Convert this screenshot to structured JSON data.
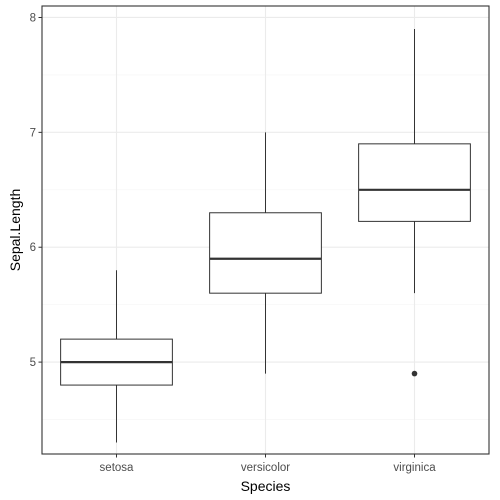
{
  "chart_data": {
    "type": "boxplot",
    "title": "",
    "xlabel": "Species",
    "ylabel": "Sepal.Length",
    "ylim": [
      4.2,
      8.1
    ],
    "y_ticks": [
      5,
      6,
      7,
      8
    ],
    "y_tick_labels": [
      "5",
      "6",
      "7",
      "8"
    ],
    "y_minor_ticks": [
      4.5,
      5.5,
      6.5,
      7.5
    ],
    "grid": true,
    "legend": "none",
    "categories": [
      "setosa",
      "versicolor",
      "virginica"
    ],
    "boxes": [
      {
        "category": "setosa",
        "min": 4.3,
        "q1": 4.8,
        "median": 5.0,
        "q3": 5.2,
        "max": 5.8,
        "outliers": []
      },
      {
        "category": "versicolor",
        "min": 4.9,
        "q1": 5.6,
        "median": 5.9,
        "q3": 6.3,
        "max": 7.0,
        "outliers": []
      },
      {
        "category": "virginica",
        "min": 5.6,
        "q1": 6.225,
        "median": 6.5,
        "q3": 6.9,
        "max": 7.9,
        "outliers": [
          4.9
        ]
      }
    ],
    "colors": {
      "panel_border": "#333333",
      "grid_major": "#ebebeb",
      "grid_minor": "#f5f5f5",
      "box_stroke": "#333333",
      "box_fill": "#ffffff",
      "tick_label": "#4d4d4d",
      "axis_title": "#000000"
    }
  }
}
